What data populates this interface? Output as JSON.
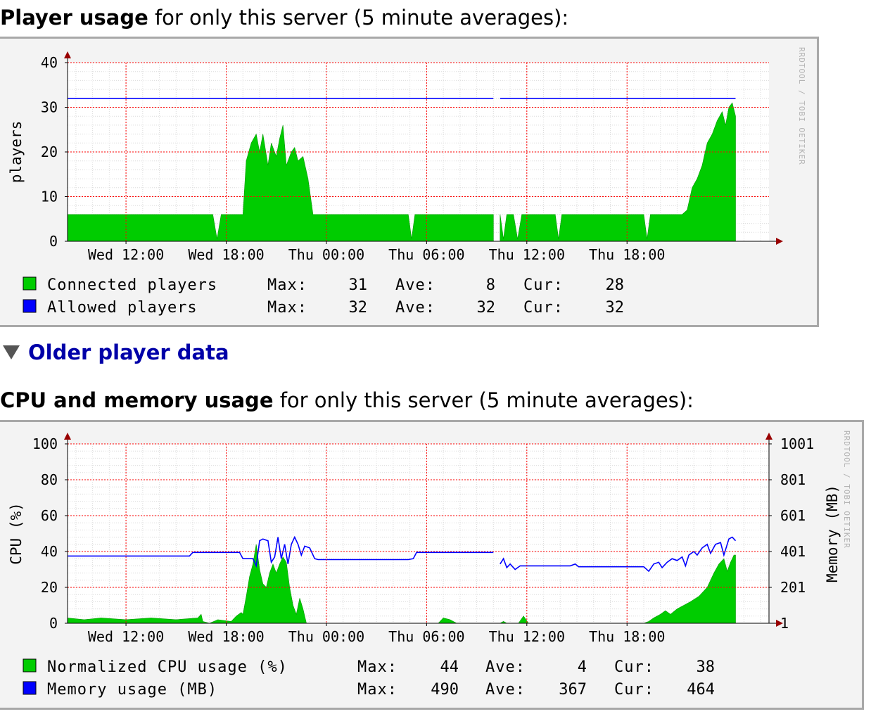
{
  "player_section": {
    "heading_bold": "Player usage",
    "heading_rest": " for only this server (5 minute averages):"
  },
  "older_toggle": {
    "label": "Older player data",
    "icon": "triangle-down-icon"
  },
  "cpu_section": {
    "heading_bold": "CPU and memory usage",
    "heading_rest": " for only this server (5 minute averages):"
  },
  "watermark": "RRDTOOL / TOBI OETIKER",
  "colors": {
    "green": "#00cc00",
    "blue": "#0000ff",
    "grid": "#ff0000",
    "arrow": "#990000",
    "heading_link": "#0000a8"
  },
  "chart_data": [
    {
      "type": "area",
      "ylabel": "players",
      "ylim": [
        0,
        40
      ],
      "yticks": [
        "0",
        "10",
        "20",
        "30",
        "40"
      ],
      "xticks": [
        "Wed 12:00",
        "Wed 18:00",
        "Thu 00:00",
        "Thu 06:00",
        "Thu 12:00",
        "Thu 18:00"
      ],
      "x_hours": [
        -3.5,
        38.5
      ],
      "series": [
        {
          "name": "Connected players",
          "kind": "area",
          "color": "#00cc00",
          "points": [
            [
              -3.5,
              6
            ],
            [
              5.2,
              6
            ],
            [
              5.45,
              0.5
            ],
            [
              5.7,
              6
            ],
            [
              7.0,
              6
            ],
            [
              7.2,
              18
            ],
            [
              7.5,
              22
            ],
            [
              7.8,
              24
            ],
            [
              8.0,
              20
            ],
            [
              8.2,
              24
            ],
            [
              8.5,
              17
            ],
            [
              8.7,
              22
            ],
            [
              9.0,
              19
            ],
            [
              9.2,
              23
            ],
            [
              9.4,
              26
            ],
            [
              9.6,
              17
            ],
            [
              9.9,
              20
            ],
            [
              10.1,
              21
            ],
            [
              10.3,
              18
            ],
            [
              10.6,
              19
            ],
            [
              10.9,
              14
            ],
            [
              11.2,
              6
            ],
            [
              16.9,
              6
            ],
            [
              17.1,
              0.5
            ],
            [
              17.3,
              6
            ],
            [
              22.0,
              6
            ],
            [
              22.2,
              null
            ],
            [
              22.3,
              null
            ],
            [
              22.4,
              6
            ],
            [
              22.6,
              0.5
            ],
            [
              22.8,
              6
            ],
            [
              23.2,
              6
            ],
            [
              23.45,
              0.5
            ],
            [
              23.7,
              6
            ],
            [
              25.7,
              6
            ],
            [
              25.9,
              0.5
            ],
            [
              26.1,
              6
            ],
            [
              31.0,
              6
            ],
            [
              31.2,
              0.5
            ],
            [
              31.4,
              6
            ],
            [
              33.3,
              6
            ],
            [
              33.6,
              7
            ],
            [
              33.9,
              12
            ],
            [
              34.2,
              14
            ],
            [
              34.5,
              17
            ],
            [
              34.8,
              22
            ],
            [
              35.1,
              24
            ],
            [
              35.4,
              27
            ],
            [
              35.7,
              29
            ],
            [
              35.9,
              26
            ],
            [
              36.1,
              30
            ],
            [
              36.3,
              31
            ],
            [
              36.5,
              28
            ]
          ]
        },
        {
          "name": "Allowed players",
          "kind": "line",
          "color": "#0000ff",
          "points": [
            [
              -3.5,
              32
            ],
            [
              22.0,
              32
            ],
            [
              22.2,
              null
            ],
            [
              22.3,
              null
            ],
            [
              22.4,
              32
            ],
            [
              36.5,
              32
            ]
          ]
        }
      ],
      "legend": [
        {
          "color": "#00cc00",
          "name": "Connected players",
          "max": "31",
          "ave": "8",
          "cur": "28"
        },
        {
          "color": "#0000ff",
          "name": "Allowed players",
          "max": "32",
          "ave": "32",
          "cur": "32"
        }
      ]
    },
    {
      "type": "area",
      "ylabel": "CPU (%)",
      "ylabel_right": "Memory (MB)",
      "ylim": [
        0,
        100
      ],
      "yticks": [
        "0",
        "20",
        "40",
        "60",
        "80",
        "100"
      ],
      "yticks_right": [
        "1",
        "201",
        "401",
        "601",
        "801",
        "1001"
      ],
      "xticks": [
        "Wed 12:00",
        "Wed 18:00",
        "Thu 00:00",
        "Thu 06:00",
        "Thu 12:00",
        "Thu 18:00"
      ],
      "x_hours": [
        -3.5,
        38.5
      ],
      "series": [
        {
          "name": "Normalized CPU usage (%)",
          "kind": "area",
          "color": "#00cc00",
          "points": [
            [
              -3.5,
              3
            ],
            [
              -2.5,
              2
            ],
            [
              -1.5,
              3
            ],
            [
              0,
              2
            ],
            [
              1.5,
              3
            ],
            [
              3.0,
              2
            ],
            [
              4.3,
              3
            ],
            [
              4.5,
              5
            ],
            [
              4.6,
              1
            ],
            [
              5.0,
              0
            ],
            [
              5.5,
              2
            ],
            [
              6.3,
              1
            ],
            [
              6.6,
              4
            ],
            [
              6.9,
              6
            ],
            [
              7.0,
              5
            ],
            [
              7.2,
              15
            ],
            [
              7.4,
              26
            ],
            [
              7.6,
              33
            ],
            [
              7.8,
              44
            ],
            [
              8.0,
              30
            ],
            [
              8.2,
              22
            ],
            [
              8.4,
              20
            ],
            [
              8.6,
              28
            ],
            [
              8.8,
              33
            ],
            [
              9.0,
              28
            ],
            [
              9.2,
              33
            ],
            [
              9.4,
              37
            ],
            [
              9.6,
              34
            ],
            [
              9.8,
              20
            ],
            [
              10.0,
              10
            ],
            [
              10.2,
              5
            ],
            [
              10.4,
              14
            ],
            [
              10.6,
              8
            ],
            [
              10.8,
              0
            ],
            [
              18.7,
              0
            ],
            [
              19.0,
              3
            ],
            [
              19.4,
              2
            ],
            [
              19.8,
              0
            ],
            [
              22.0,
              0
            ],
            [
              22.2,
              null
            ],
            [
              22.3,
              null
            ],
            [
              22.4,
              0
            ],
            [
              22.6,
              1
            ],
            [
              22.8,
              0
            ],
            [
              23.5,
              0
            ],
            [
              23.8,
              4
            ],
            [
              24.1,
              0
            ],
            [
              31.0,
              0
            ],
            [
              31.3,
              1
            ],
            [
              31.6,
              3
            ],
            [
              32.0,
              5
            ],
            [
              32.3,
              7
            ],
            [
              32.6,
              5
            ],
            [
              33.0,
              8
            ],
            [
              33.4,
              10
            ],
            [
              33.8,
              12
            ],
            [
              34.3,
              15
            ],
            [
              34.8,
              20
            ],
            [
              35.2,
              28
            ],
            [
              35.5,
              33
            ],
            [
              35.8,
              36
            ],
            [
              36.0,
              29
            ],
            [
              36.2,
              34
            ],
            [
              36.4,
              38
            ],
            [
              36.5,
              38
            ]
          ]
        },
        {
          "name": "Memory usage (MB)",
          "kind": "line",
          "color": "#0000ff",
          "points": [
            [
              -3.5,
              37.5
            ],
            [
              3.8,
              37.5
            ],
            [
              4.0,
              39.5
            ],
            [
              6.8,
              39.5
            ],
            [
              7.0,
              36
            ],
            [
              7.6,
              36
            ],
            [
              7.8,
              32
            ],
            [
              8.0,
              46
            ],
            [
              8.2,
              47
            ],
            [
              8.5,
              46
            ],
            [
              8.7,
              34
            ],
            [
              8.9,
              37
            ],
            [
              9.1,
              48
            ],
            [
              9.3,
              36
            ],
            [
              9.5,
              44
            ],
            [
              9.7,
              33
            ],
            [
              9.9,
              44
            ],
            [
              10.1,
              48
            ],
            [
              10.3,
              44
            ],
            [
              10.5,
              38
            ],
            [
              10.7,
              43
            ],
            [
              11.0,
              42
            ],
            [
              11.3,
              36
            ],
            [
              11.5,
              35.5
            ],
            [
              16.9,
              35.5
            ],
            [
              17.2,
              36
            ],
            [
              17.4,
              39.5
            ],
            [
              22.0,
              39.5
            ],
            [
              22.2,
              null
            ],
            [
              22.3,
              null
            ],
            [
              22.4,
              33
            ],
            [
              22.6,
              36
            ],
            [
              22.8,
              31
            ],
            [
              23.0,
              33
            ],
            [
              23.3,
              30
            ],
            [
              23.6,
              32
            ],
            [
              26.6,
              32
            ],
            [
              26.9,
              33
            ],
            [
              27.1,
              31.5
            ],
            [
              31.0,
              31.5
            ],
            [
              31.3,
              29
            ],
            [
              31.6,
              33
            ],
            [
              31.9,
              34
            ],
            [
              32.1,
              31
            ],
            [
              32.4,
              34
            ],
            [
              32.7,
              36
            ],
            [
              33.0,
              35
            ],
            [
              33.3,
              37
            ],
            [
              33.5,
              32
            ],
            [
              33.7,
              38
            ],
            [
              34.0,
              40
            ],
            [
              34.2,
              38
            ],
            [
              34.5,
              42
            ],
            [
              34.8,
              44
            ],
            [
              35.0,
              39
            ],
            [
              35.3,
              44
            ],
            [
              35.6,
              45
            ],
            [
              35.8,
              38
            ],
            [
              36.1,
              47
            ],
            [
              36.3,
              48
            ],
            [
              36.5,
              46
            ]
          ]
        }
      ],
      "legend": [
        {
          "color": "#00cc00",
          "name": "Normalized CPU usage (%)",
          "max": "44",
          "ave": "4",
          "cur": "38"
        },
        {
          "color": "#0000ff",
          "name": "Memory usage (MB)",
          "max": "490",
          "ave": "367",
          "cur": "464"
        }
      ]
    }
  ]
}
